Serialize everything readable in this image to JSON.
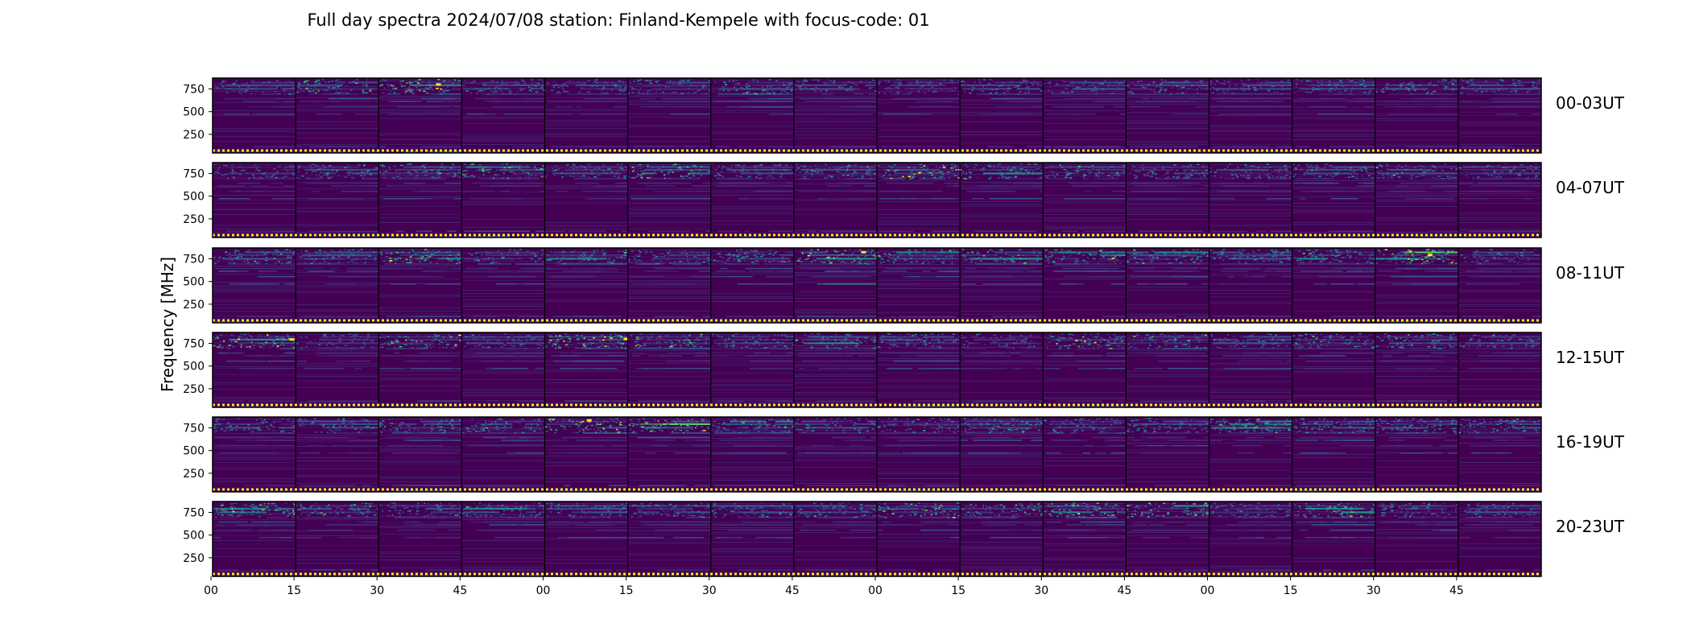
{
  "chart_data": {
    "type": "heatmap",
    "title": "Full day spectra 2024/07/08 station: Finland-Kempele with focus-code: 01",
    "ylabel": "Frequency [MHz]",
    "xlabel": "",
    "y_ticks": [
      250,
      500,
      750
    ],
    "y_range_mhz": [
      45,
      870
    ],
    "x_tick_labels": [
      "00",
      "15",
      "30",
      "45",
      "00",
      "15",
      "30",
      "45",
      "00",
      "15",
      "30",
      "45",
      "00",
      "15",
      "30",
      "45"
    ],
    "panels_per_row": 16,
    "minutes_per_panel": 15,
    "colormap": {
      "low": "#440154",
      "mid_low": "#3b528b",
      "mid": "#21918c",
      "mid_high": "#5ec962",
      "high": "#fde725"
    },
    "persistent_bands_mhz": [
      60,
      120,
      480,
      560,
      620,
      650,
      700,
      760,
      800,
      830
    ],
    "rows": [
      {
        "label": "00-03UT",
        "activity": [
          0.5,
          0.8,
          0.9,
          0.6,
          0.5,
          0.5,
          0.7,
          0.5,
          0.5,
          0.6,
          0.5,
          0.6,
          0.5,
          0.6,
          0.6,
          0.5
        ]
      },
      {
        "label": "04-07UT",
        "activity": [
          0.5,
          0.6,
          0.7,
          0.8,
          0.6,
          0.8,
          0.6,
          0.7,
          0.9,
          0.7,
          0.7,
          0.6,
          0.6,
          0.6,
          0.7,
          0.5
        ]
      },
      {
        "label": "08-11UT",
        "activity": [
          0.7,
          0.6,
          0.8,
          0.6,
          0.7,
          0.6,
          0.7,
          0.9,
          0.7,
          0.7,
          0.8,
          0.7,
          0.6,
          0.7,
          0.9,
          0.5
        ]
      },
      {
        "label": "12-15UT",
        "activity": [
          0.9,
          0.4,
          0.8,
          0.5,
          1.0,
          0.8,
          0.6,
          0.7,
          0.6,
          0.4,
          0.8,
          0.7,
          0.5,
          0.7,
          0.7,
          0.6
        ]
      },
      {
        "label": "16-19UT",
        "activity": [
          0.6,
          0.5,
          0.7,
          0.7,
          0.9,
          0.9,
          0.7,
          0.6,
          0.6,
          0.7,
          0.6,
          0.6,
          0.8,
          0.7,
          0.7,
          0.7
        ]
      },
      {
        "label": "20-23UT",
        "activity": [
          0.8,
          0.7,
          0.6,
          0.7,
          0.6,
          0.6,
          0.6,
          0.7,
          0.8,
          0.7,
          0.8,
          0.8,
          0.5,
          0.8,
          0.6,
          0.5
        ]
      }
    ]
  }
}
